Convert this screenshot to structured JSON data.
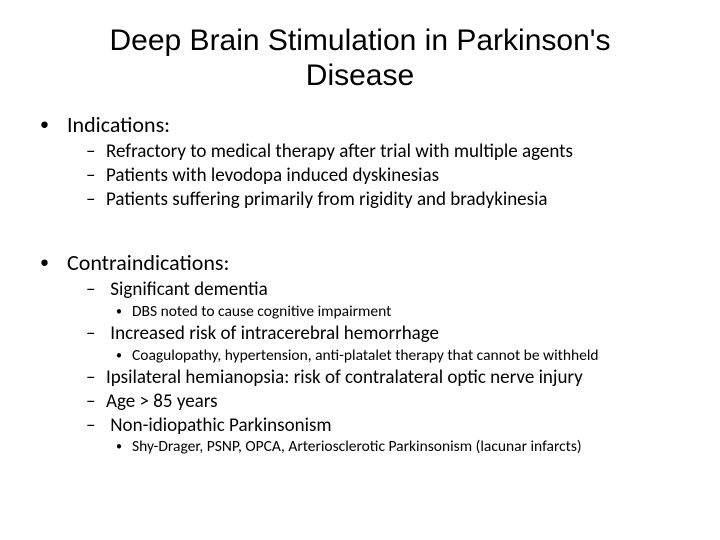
{
  "title": "Deep Brain Stimulation in Parkinson's Disease",
  "sections": [
    {
      "heading": "Indications:",
      "items": [
        {
          "text": "Refractory to medical therapy after trial with multiple agents"
        },
        {
          "text": "Patients with levodopa induced dyskinesias"
        },
        {
          "text": "Patients suffering primarily from rigidity and bradykinesia"
        }
      ]
    },
    {
      "heading": "Contraindications:",
      "items": [
        {
          "text": "Significant dementia",
          "sub": [
            "DBS noted to cause cognitive impairment"
          ]
        },
        {
          "text": "Increased risk of intracerebral hemorrhage",
          "sub": [
            "Coagulopathy, hypertension, anti-platalet therapy that cannot be withheld"
          ]
        },
        {
          "text": "Ipsilateral hemianopsia: risk of contralateral optic nerve injury"
        },
        {
          "text": "Age > 85 years"
        },
        {
          "text": "Non-idiopathic Parkinsonism",
          "sub": [
            "Shy-Drager, PSNP, OPCA, Arteriosclerotic Parkinsonism (lacunar infarcts)"
          ]
        }
      ]
    }
  ],
  "style": {
    "background_color": "#ffffff",
    "text_color": "#000000",
    "title_fontsize": 30,
    "lvl1_fontsize": 22,
    "lvl2_fontsize": 19,
    "lvl3_fontsize": 15.5,
    "title_font": "Arial",
    "body_font": "Calibri"
  }
}
